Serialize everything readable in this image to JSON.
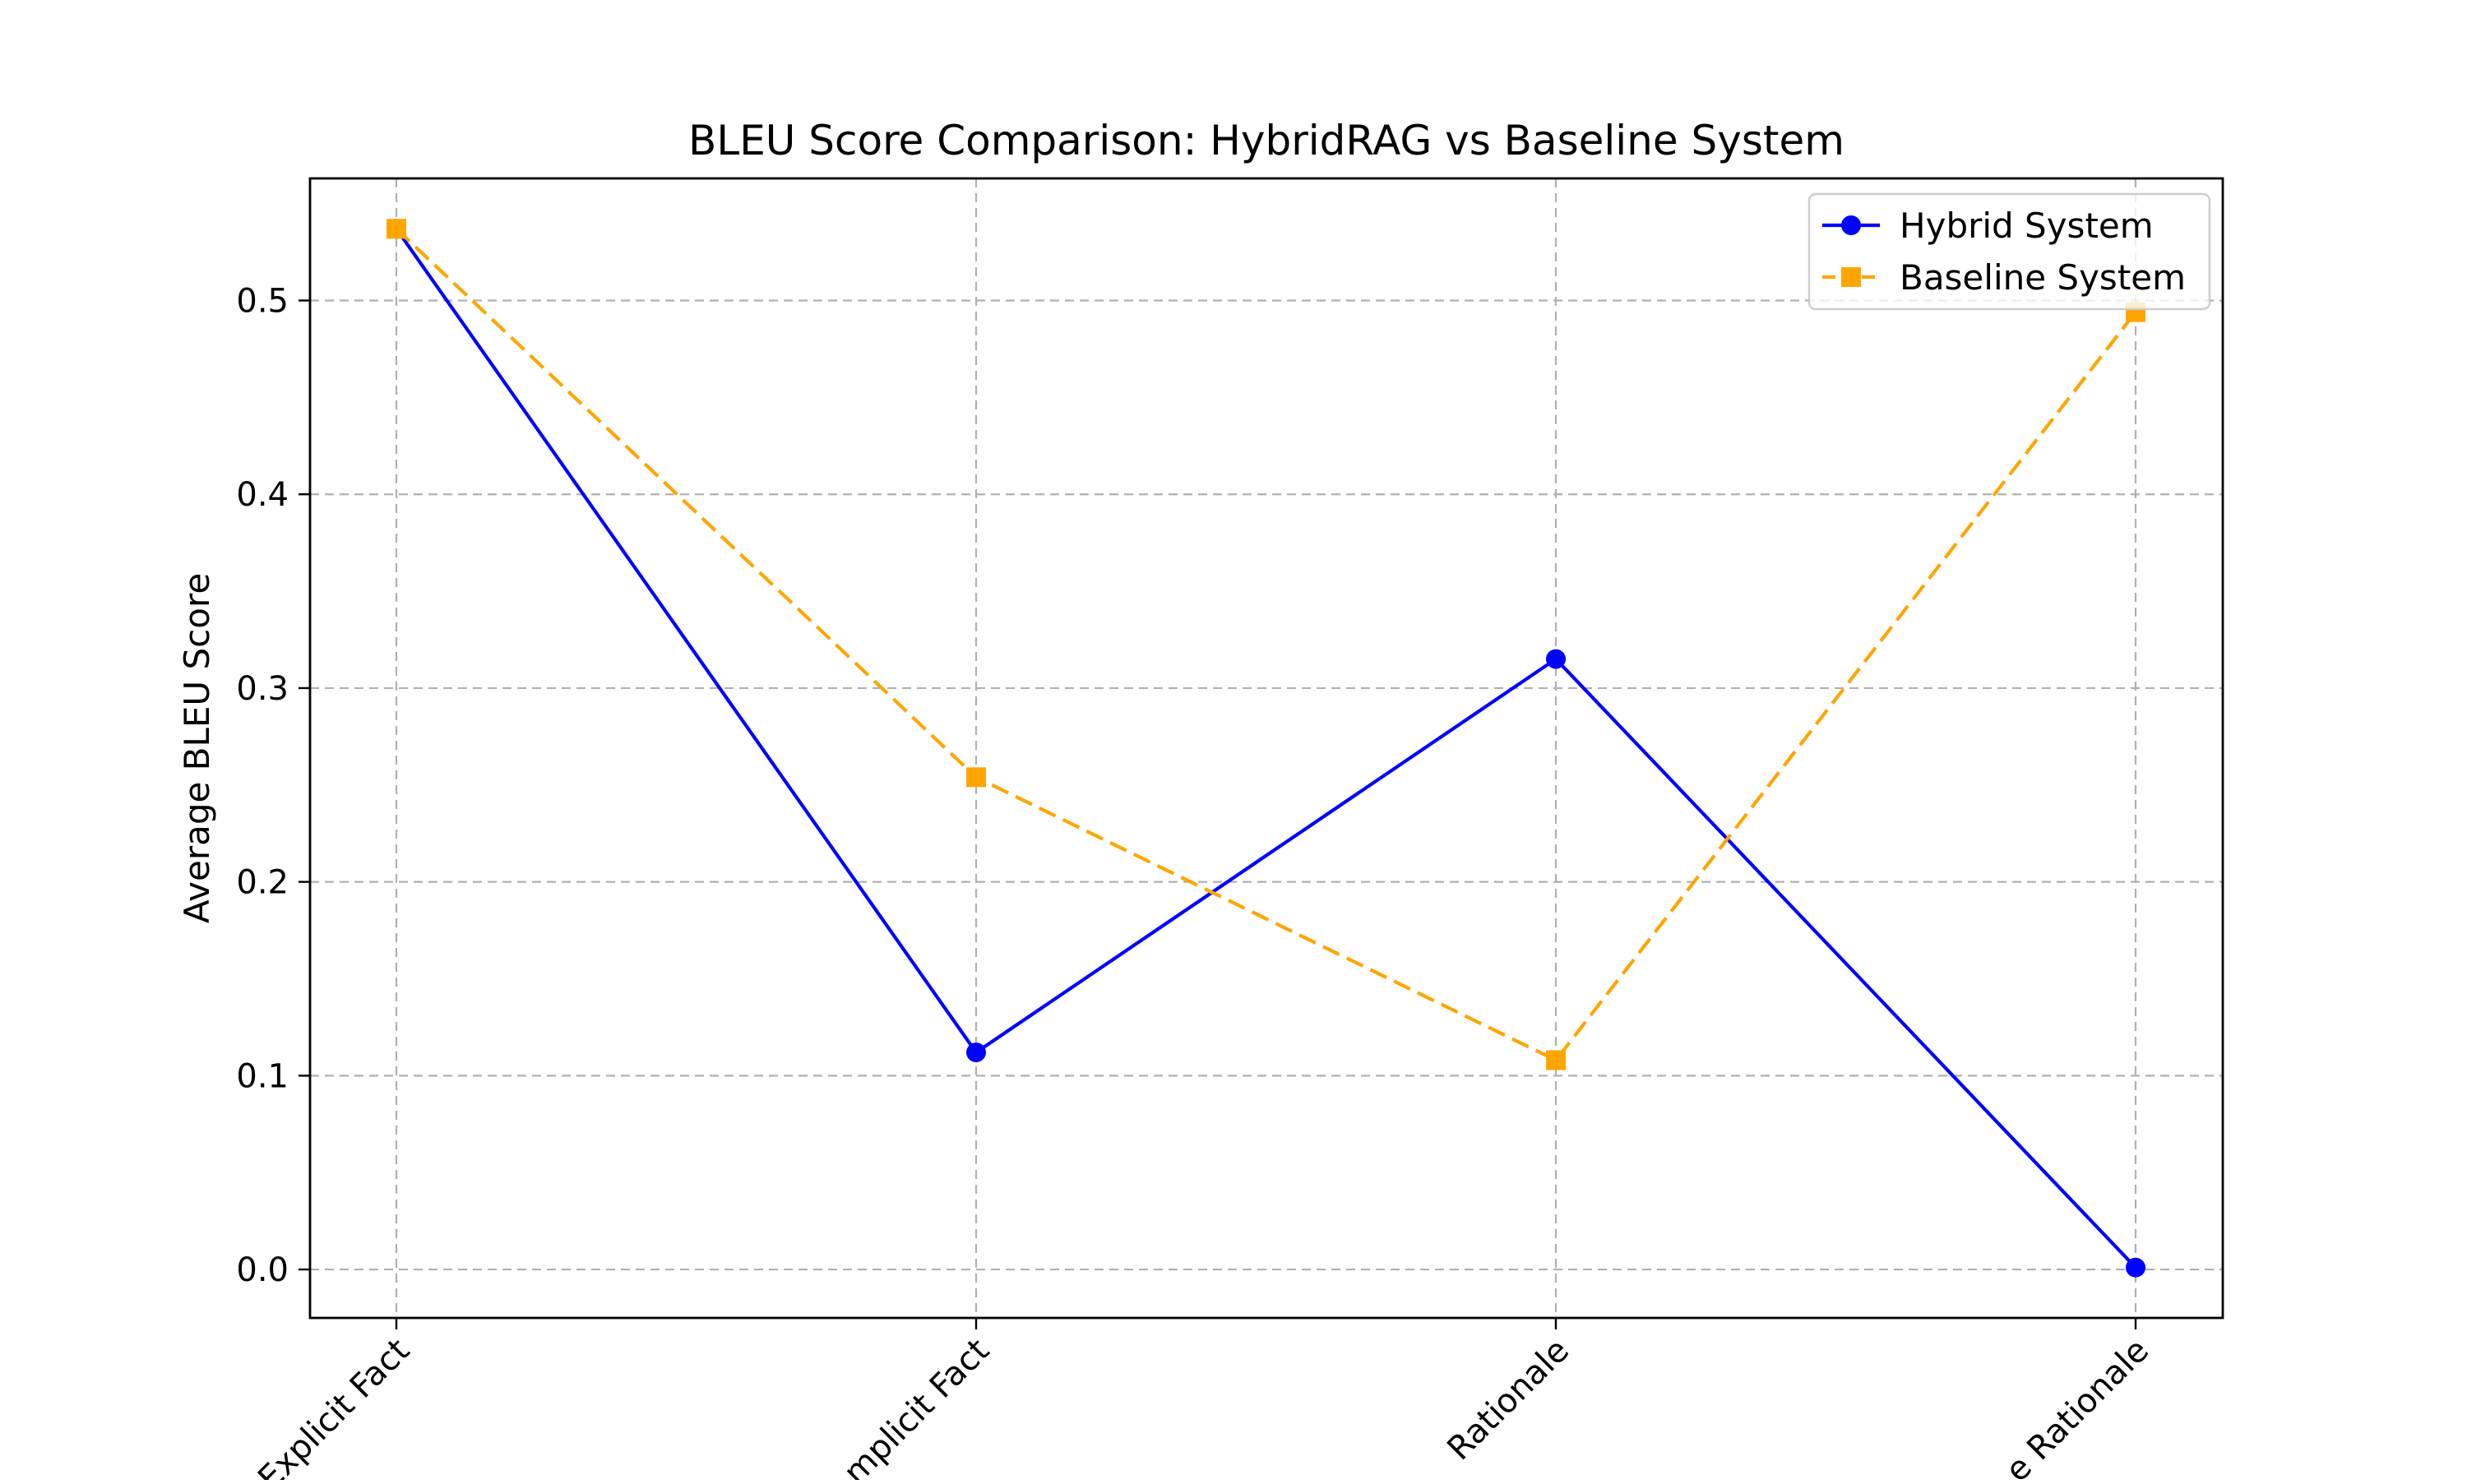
{
  "chart_data": {
    "type": "line",
    "title": "BLEU Score Comparison: HybridRAG vs Baseline System",
    "xlabel": "",
    "ylabel": "Average BLEU Score",
    "categories": [
      "Explicit Fact",
      "Implicit Fact",
      "Interpretable Rationale",
      "Hidden Rationale"
    ],
    "categories_visible_text": [
      "Explicit Fact",
      "mplicit Fact",
      "Rationale",
      "e Rationale"
    ],
    "y_ticks": [
      0.0,
      0.1,
      0.2,
      0.3,
      0.4,
      0.5
    ],
    "y_tick_labels": [
      "0.0",
      "0.1",
      "0.2",
      "0.3",
      "0.4",
      "0.5"
    ],
    "ylim": [
      -0.025,
      0.563
    ],
    "grid": true,
    "legend_position": "top-right",
    "series": [
      {
        "name": "Hybrid System",
        "values": [
          0.537,
          0.112,
          0.315,
          0.001
        ],
        "color": "#0000ff",
        "marker": "circle",
        "line_style": "solid"
      },
      {
        "name": "Baseline System",
        "values": [
          0.537,
          0.254,
          0.108,
          0.494
        ],
        "color": "#ffa500",
        "marker": "square",
        "line_style": "dashed"
      }
    ]
  }
}
